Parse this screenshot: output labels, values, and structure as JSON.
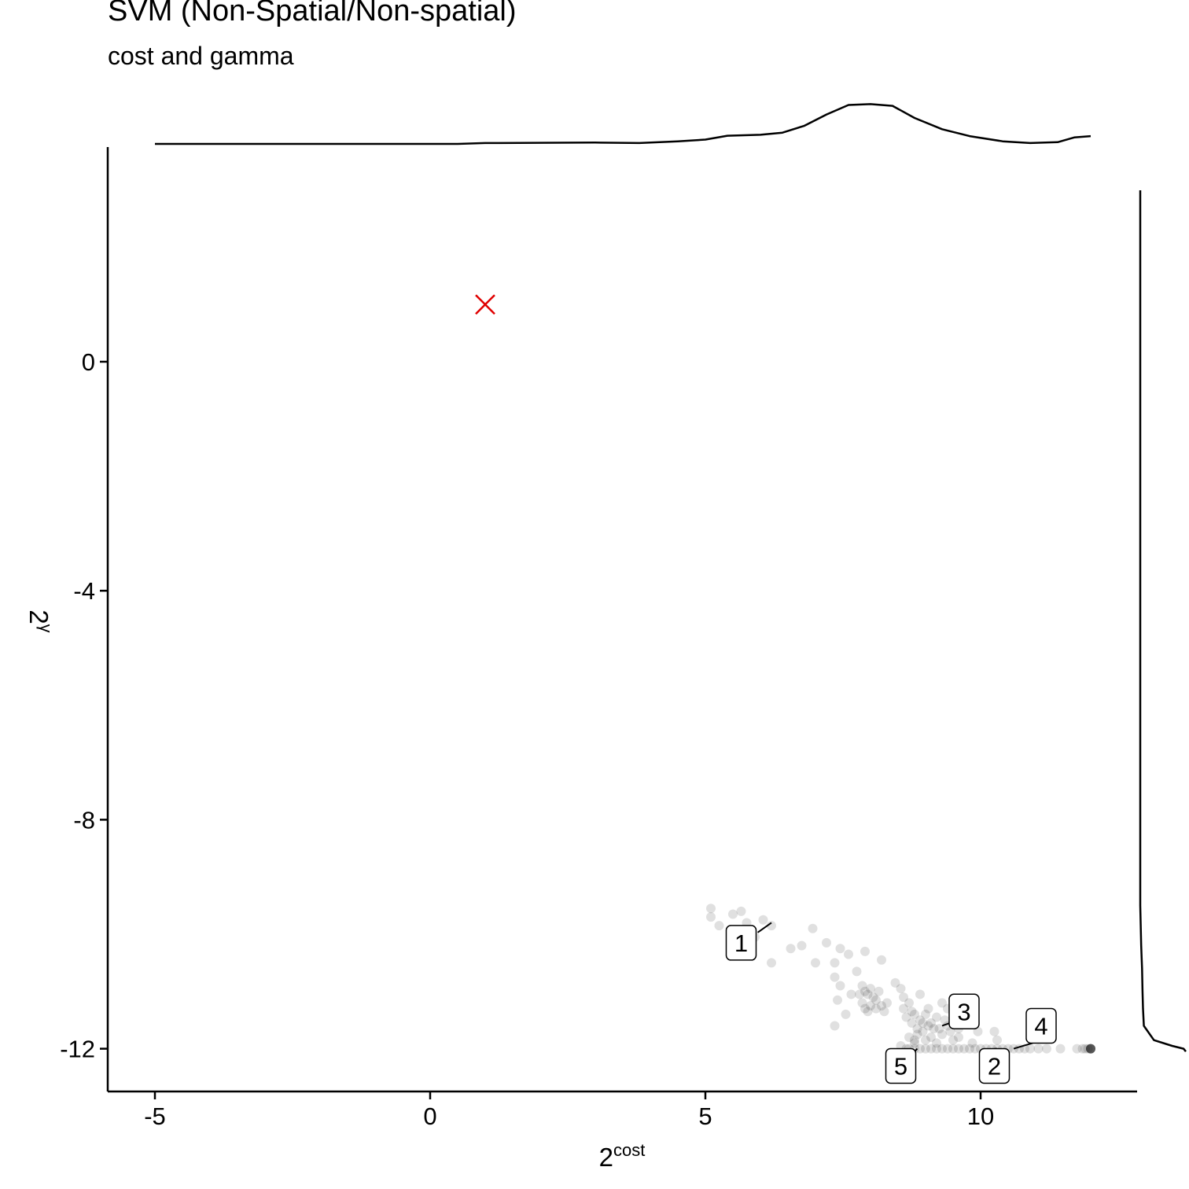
{
  "chart_data": {
    "type": "scatter",
    "title": "SVM (Non-Spatial/Non-spatial)",
    "subtitle": "cost and gamma",
    "xlabel": {
      "base": "2",
      "sup": "cost"
    },
    "ylabel": {
      "base": "2",
      "sup": "γ"
    },
    "xlim": [
      -5.8,
      12.9
    ],
    "ylim": [
      -12.75,
      3.7
    ],
    "xticks": [
      -5,
      0,
      5,
      10
    ],
    "yticks": [
      0,
      -4,
      -8,
      -12
    ],
    "marginal_densities": [
      "top (x)",
      "right (y)"
    ],
    "points": [
      [
        5.1,
        -9.7
      ],
      [
        5.1,
        -9.55
      ],
      [
        5.25,
        -9.85
      ],
      [
        5.5,
        -9.65
      ],
      [
        5.65,
        -9.6
      ],
      [
        5.75,
        -9.8
      ],
      [
        5.9,
        -10.05
      ],
      [
        6.05,
        -9.75
      ],
      [
        6.2,
        -9.85
      ],
      [
        6.2,
        -10.5
      ],
      [
        6.55,
        -10.25
      ],
      [
        6.75,
        -10.2
      ],
      [
        6.95,
        -9.9
      ],
      [
        7.0,
        -10.5
      ],
      [
        7.2,
        -10.15
      ],
      [
        7.35,
        -10.5
      ],
      [
        7.45,
        -10.25
      ],
      [
        7.35,
        -10.75
      ],
      [
        7.45,
        -10.9
      ],
      [
        7.6,
        -10.35
      ],
      [
        7.75,
        -10.65
      ],
      [
        7.65,
        -11.05
      ],
      [
        7.4,
        -11.15
      ],
      [
        7.55,
        -11.4
      ],
      [
        7.35,
        -11.6
      ],
      [
        7.9,
        -10.3
      ],
      [
        8.2,
        -10.45
      ],
      [
        8.45,
        -10.85
      ],
      [
        8.55,
        -10.95
      ],
      [
        8.3,
        -11.2
      ],
      [
        7.85,
        -10.9
      ],
      [
        7.9,
        -11.0
      ],
      [
        7.95,
        -11.05
      ],
      [
        8.05,
        -11.1
      ],
      [
        8.1,
        -11.15
      ],
      [
        8.0,
        -11.25
      ],
      [
        8.1,
        -11.3
      ],
      [
        8.2,
        -11.25
      ],
      [
        8.25,
        -11.35
      ],
      [
        7.8,
        -11.05
      ],
      [
        7.85,
        -11.2
      ],
      [
        7.9,
        -11.3
      ],
      [
        8.0,
        -10.95
      ],
      [
        7.95,
        -11.35
      ],
      [
        8.15,
        -11.0
      ],
      [
        8.6,
        -11.1
      ],
      [
        8.6,
        -11.3
      ],
      [
        8.7,
        -11.2
      ],
      [
        8.65,
        -11.45
      ],
      [
        8.8,
        -11.4
      ],
      [
        8.75,
        -11.55
      ],
      [
        8.85,
        -11.65
      ],
      [
        8.9,
        -11.5
      ],
      [
        8.95,
        -11.7
      ],
      [
        9.0,
        -11.4
      ],
      [
        9.05,
        -11.6
      ],
      [
        9.1,
        -11.55
      ],
      [
        9.2,
        -11.45
      ],
      [
        9.25,
        -11.65
      ],
      [
        9.35,
        -11.5
      ],
      [
        9.4,
        -11.3
      ],
      [
        9.45,
        -11.7
      ],
      [
        9.5,
        -11.55
      ],
      [
        9.55,
        -11.4
      ],
      [
        9.6,
        -11.65
      ],
      [
        9.7,
        -11.5
      ],
      [
        9.8,
        -11.35
      ],
      [
        9.9,
        -11.55
      ],
      [
        9.95,
        -11.7
      ],
      [
        10.25,
        -11.7
      ],
      [
        8.7,
        -11.8
      ],
      [
        8.8,
        -11.85
      ],
      [
        9.0,
        -11.85
      ],
      [
        9.2,
        -11.9
      ],
      [
        9.5,
        -11.85
      ],
      [
        9.85,
        -11.9
      ],
      [
        10.3,
        -11.85
      ],
      [
        8.9,
        -11.05
      ],
      [
        9.3,
        -11.2
      ],
      [
        9.7,
        -11.3
      ],
      [
        8.8,
        -11.9
      ],
      [
        8.85,
        -11.75
      ],
      [
        9.1,
        -11.8
      ],
      [
        9.3,
        -11.75
      ],
      [
        9.6,
        -11.8
      ],
      [
        8.95,
        -11.55
      ],
      [
        9.15,
        -11.65
      ],
      [
        9.4,
        -11.6
      ],
      [
        8.75,
        -11.35
      ],
      [
        9.05,
        -11.3
      ],
      [
        8.55,
        -11.95
      ],
      [
        8.65,
        -12.0
      ],
      [
        8.7,
        -12.0
      ],
      [
        8.8,
        -12.0
      ],
      [
        8.9,
        -12.0
      ],
      [
        9.0,
        -12.0
      ],
      [
        9.1,
        -12.0
      ],
      [
        9.2,
        -12.0
      ],
      [
        9.3,
        -12.0
      ],
      [
        9.4,
        -12.0
      ],
      [
        9.5,
        -12.0
      ],
      [
        9.6,
        -12.0
      ],
      [
        9.7,
        -12.0
      ],
      [
        9.8,
        -12.0
      ],
      [
        9.9,
        -12.0
      ],
      [
        10.0,
        -12.0
      ],
      [
        10.1,
        -12.0
      ],
      [
        10.2,
        -12.0
      ],
      [
        10.3,
        -12.0
      ],
      [
        10.4,
        -12.0
      ],
      [
        10.5,
        -12.0
      ],
      [
        10.6,
        -12.0
      ],
      [
        10.7,
        -12.0
      ],
      [
        10.8,
        -12.0
      ],
      [
        10.9,
        -12.0
      ],
      [
        11.05,
        -12.0
      ],
      [
        11.2,
        -12.0
      ],
      [
        11.45,
        -12.0
      ],
      [
        11.75,
        -12.0
      ],
      [
        11.85,
        -12.0
      ],
      [
        11.9,
        -12.0
      ],
      [
        11.95,
        -12.0
      ],
      [
        12.0,
        -12.0
      ],
      [
        12.0,
        -12.0
      ],
      [
        12.0,
        -12.0
      ],
      [
        12.0,
        -12.0
      ],
      [
        12.0,
        -12.0
      ],
      [
        12.0,
        -12.0
      ],
      [
        12.0,
        -12.0
      ],
      [
        12.0,
        -12.0
      ]
    ],
    "optimum_marker": {
      "x": 1.0,
      "y": 1.0,
      "color": "#e00000",
      "shape": "x"
    },
    "labels": [
      {
        "text": "1",
        "x": 5.65,
        "y": -10.15,
        "lx": 5.95,
        "ly": -9.97,
        "px": 6.2,
        "py": -9.8
      },
      {
        "text": "2",
        "x": 10.25,
        "y": -12.3,
        "lx": 10.25,
        "ly": -12.0,
        "px": 10.3,
        "py": -12.0
      },
      {
        "text": "3",
        "x": 9.7,
        "y": -11.35,
        "lx": 9.45,
        "ly": -11.55,
        "px": 9.3,
        "py": -11.6
      },
      {
        "text": "4",
        "x": 11.1,
        "y": -11.6,
        "lx": 10.95,
        "ly": -11.9,
        "px": 10.6,
        "py": -12.0
      },
      {
        "text": "5",
        "x": 8.55,
        "y": -12.3,
        "lx": 8.75,
        "ly": -12.1,
        "px": 8.85,
        "py": -12.0
      }
    ],
    "density_x": [
      [
        -5.0,
        0.0
      ],
      [
        -2.0,
        0.0
      ],
      [
        0.5,
        0.0
      ],
      [
        1.0,
        0.02
      ],
      [
        3.0,
        0.03
      ],
      [
        3.8,
        0.02
      ],
      [
        4.5,
        0.06
      ],
      [
        5.0,
        0.1
      ],
      [
        5.4,
        0.19
      ],
      [
        6.0,
        0.21
      ],
      [
        6.4,
        0.26
      ],
      [
        6.8,
        0.42
      ],
      [
        7.2,
        0.68
      ],
      [
        7.6,
        0.9
      ],
      [
        8.0,
        0.92
      ],
      [
        8.4,
        0.88
      ],
      [
        8.8,
        0.6
      ],
      [
        9.3,
        0.34
      ],
      [
        9.8,
        0.18
      ],
      [
        10.4,
        0.06
      ],
      [
        10.9,
        0.02
      ],
      [
        11.4,
        0.04
      ],
      [
        11.7,
        0.15
      ],
      [
        12.0,
        0.18
      ]
    ],
    "density_y": [
      [
        3.0,
        0.0
      ],
      [
        -4.0,
        0.0
      ],
      [
        -8.0,
        0.0
      ],
      [
        -9.5,
        0.0
      ],
      [
        -10.2,
        0.02
      ],
      [
        -10.6,
        0.04
      ],
      [
        -11.0,
        0.05
      ],
      [
        -11.3,
        0.06
      ],
      [
        -11.6,
        0.08
      ],
      [
        -11.85,
        0.3
      ],
      [
        -11.95,
        0.7
      ],
      [
        -12.0,
        0.95
      ],
      [
        -12.05,
        1.0
      ]
    ]
  }
}
